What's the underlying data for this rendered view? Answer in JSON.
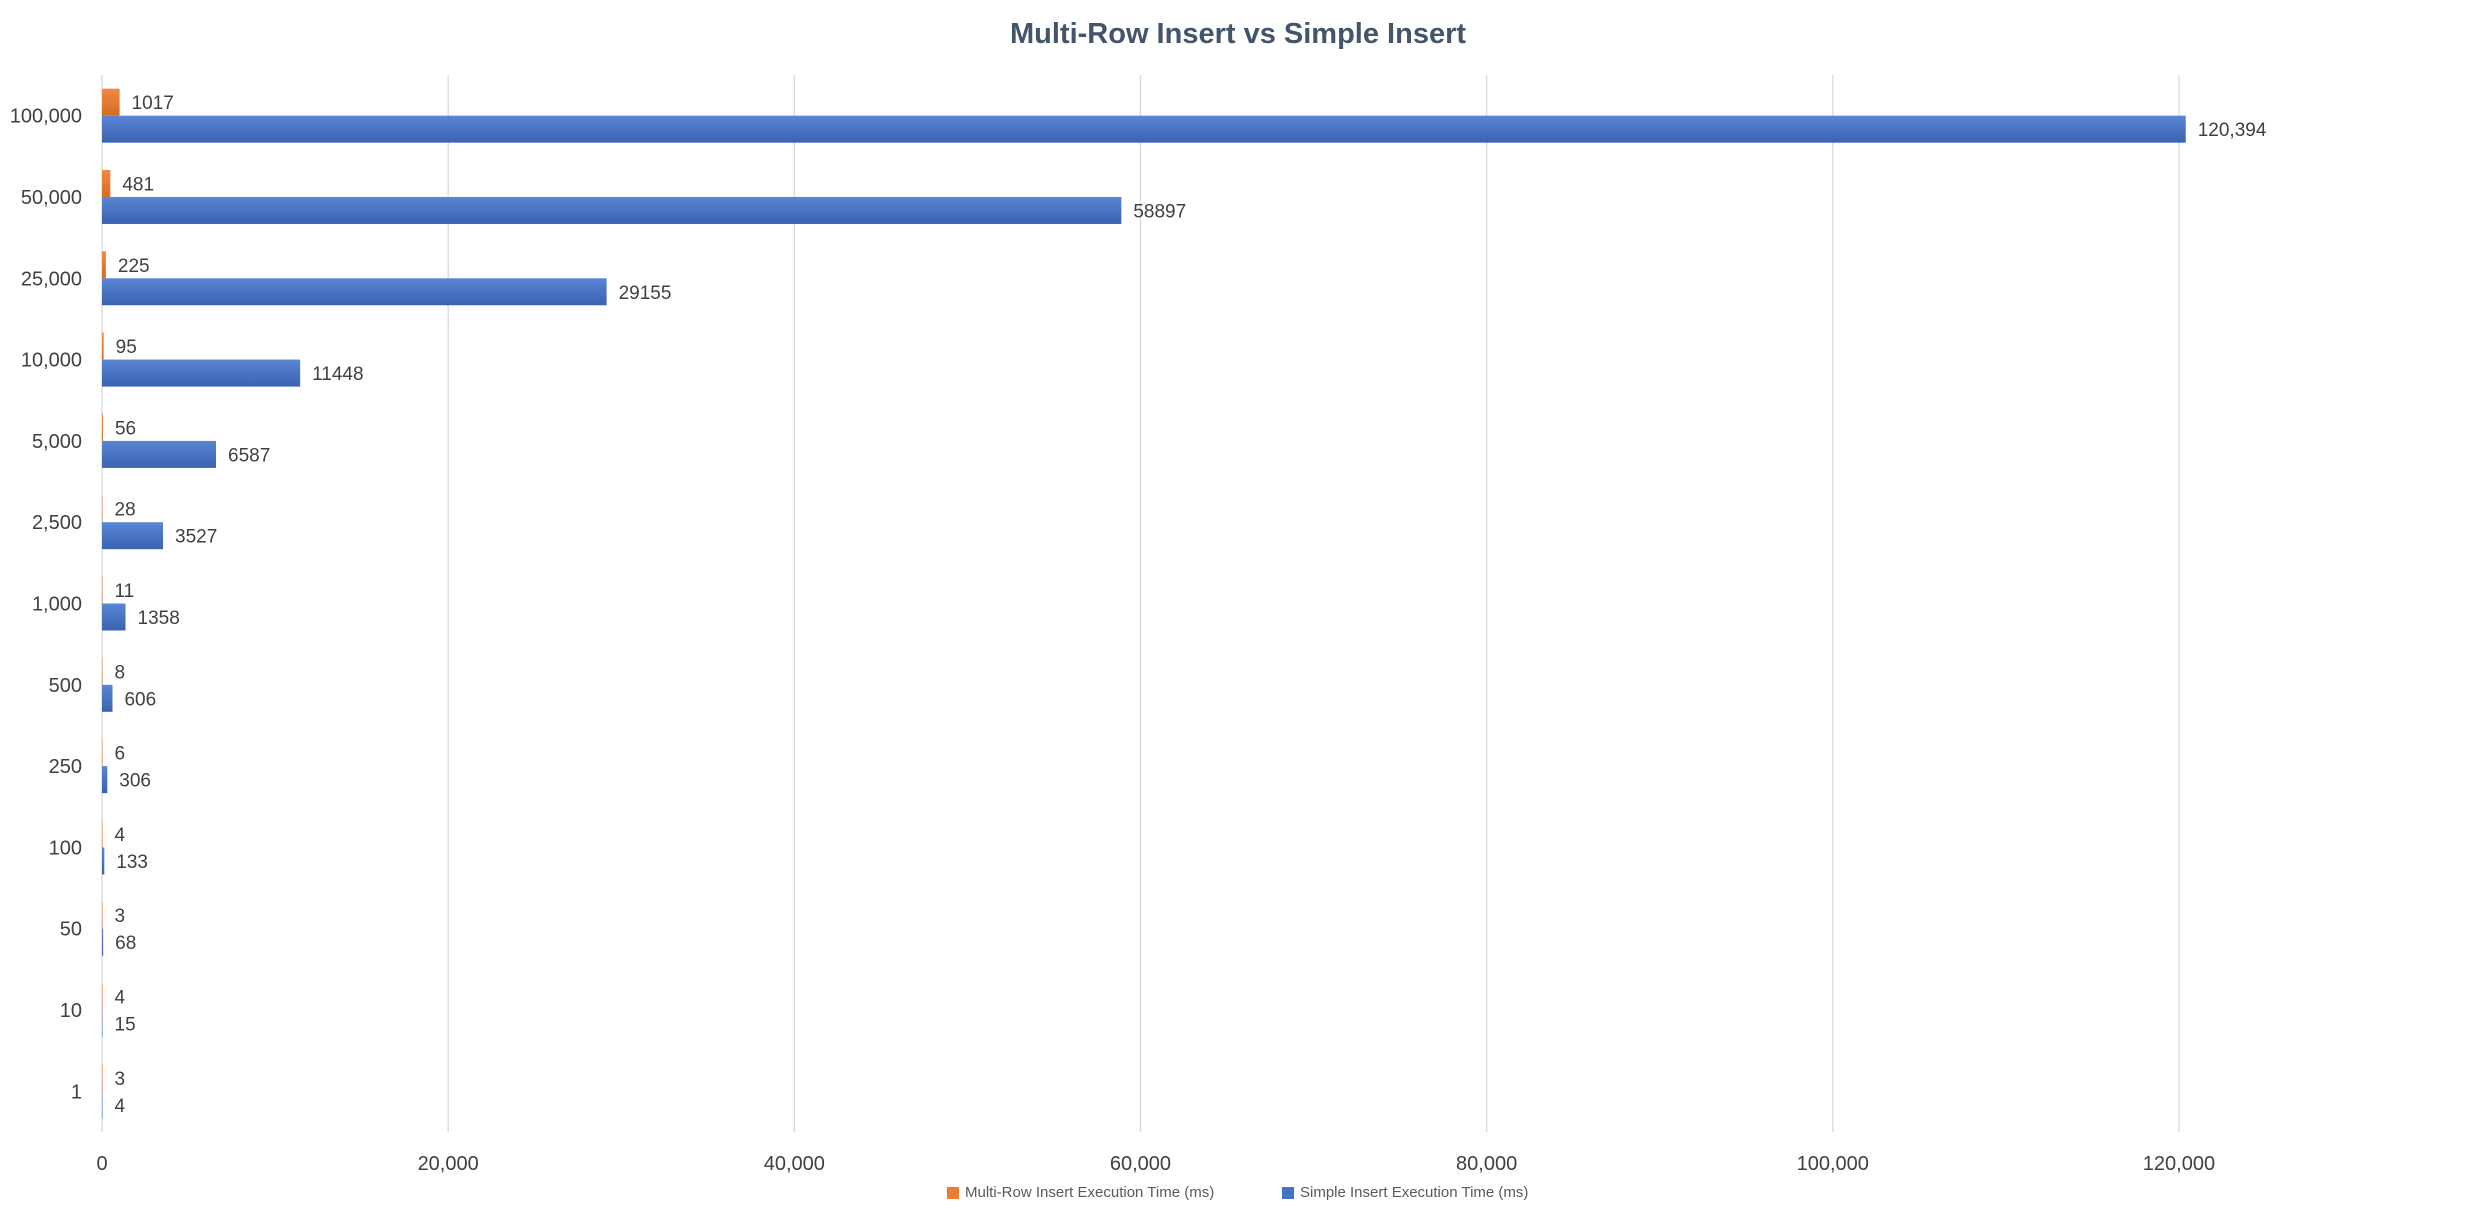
{
  "chart_data": {
    "type": "bar",
    "orientation": "horizontal",
    "title": "Multi-Row Insert vs Simple Insert",
    "xlabel": "",
    "ylabel": "",
    "categories": [
      "100,000",
      "50,000",
      "25,000",
      "10,000",
      "5,000",
      "2,500",
      "1,000",
      "500",
      "250",
      "100",
      "50",
      "10",
      "1"
    ],
    "series": [
      {
        "name": "Multi-Row Insert Execution Time (ms)",
        "color": "#ed7d31",
        "values": [
          1017,
          481,
          225,
          95,
          56,
          28,
          11,
          8,
          6,
          4,
          3,
          4,
          3
        ],
        "labels": [
          "1017",
          "481",
          "225",
          "95",
          "56",
          "28",
          "11",
          "8",
          "6",
          "4",
          "3",
          "4",
          "3"
        ]
      },
      {
        "name": "Simple Insert Execution Time (ms)",
        "color": "#4472c4",
        "values": [
          120394,
          58897,
          29155,
          11448,
          6587,
          3527,
          1358,
          606,
          306,
          133,
          68,
          15,
          4
        ],
        "labels": [
          "120,394",
          "58897",
          "29155",
          "11448",
          "6587",
          "3527",
          "1358",
          "606",
          "306",
          "133",
          "68",
          "15",
          "4"
        ]
      }
    ],
    "xlim": [
      0,
      130000
    ],
    "xticks": [
      0,
      20000,
      40000,
      60000,
      80000,
      100000,
      120000
    ],
    "xtick_labels": [
      "0",
      "20,000",
      "40,000",
      "60,000",
      "80,000",
      "100,000",
      "120,000"
    ],
    "grid": "vertical",
    "legend": "bottom"
  }
}
